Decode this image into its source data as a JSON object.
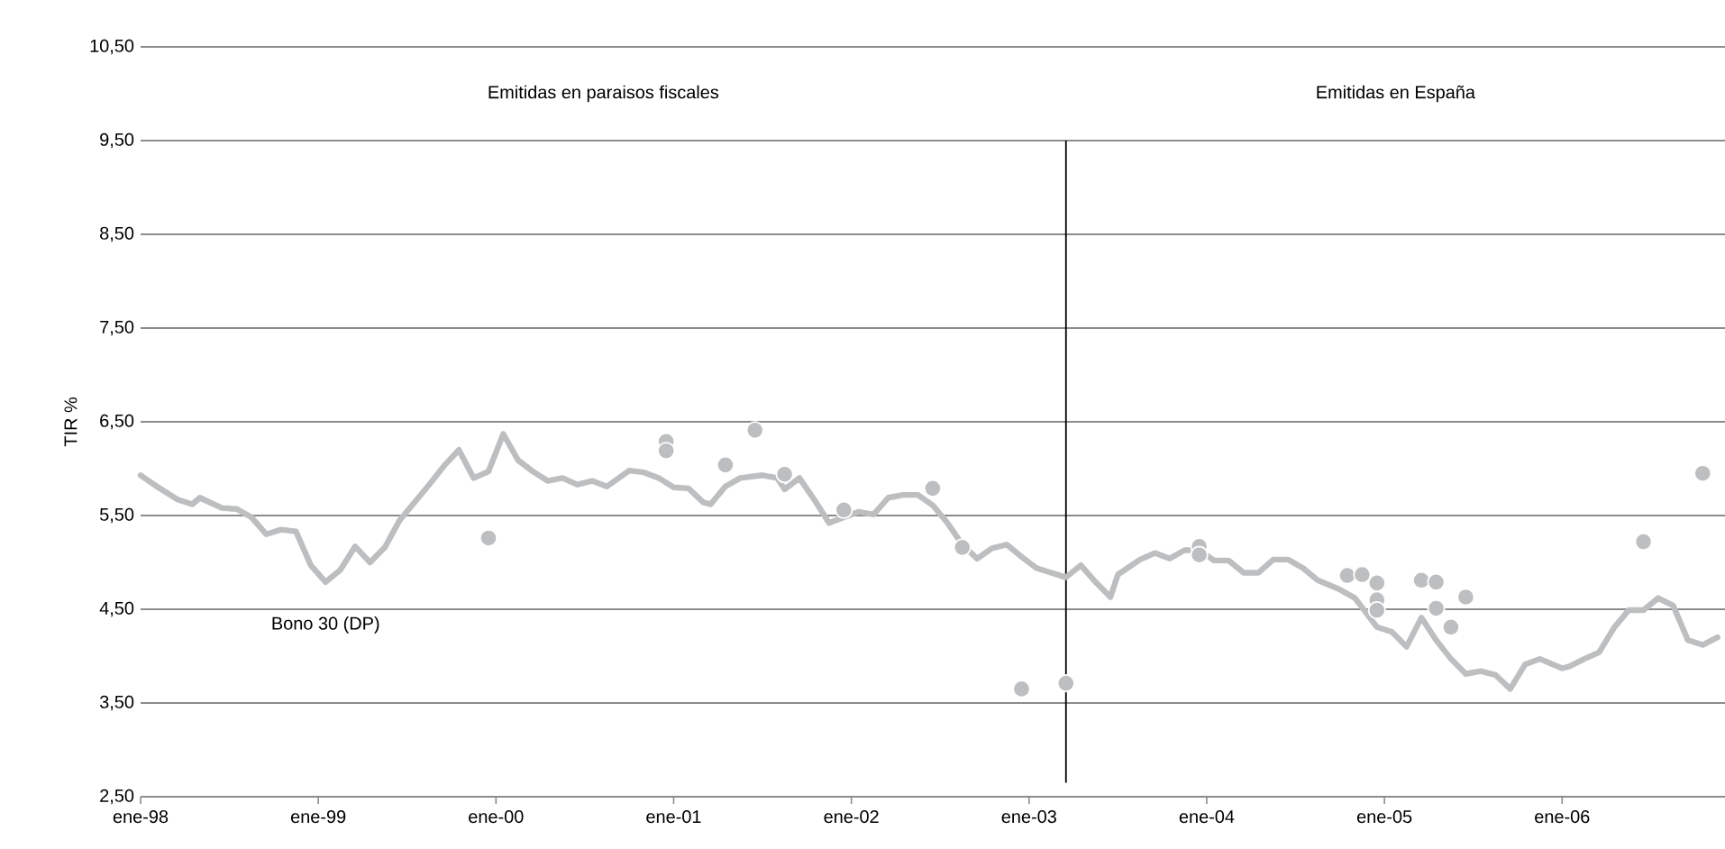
{
  "chart_data": {
    "type": "line",
    "ylabel": "TIR %",
    "annotations": [
      "Emitidas en paraisos fiscales",
      "Emitidas en España"
    ],
    "xlim": [
      "1998-01",
      "2006-12"
    ],
    "ylim": [
      2.5,
      10.5
    ],
    "xticks": [
      {
        "value": "1998-01",
        "label": "ene-98"
      },
      {
        "value": "1999-01",
        "label": "ene-99"
      },
      {
        "value": "2000-01",
        "label": "ene-00"
      },
      {
        "value": "2001-01",
        "label": "ene-01"
      },
      {
        "value": "2002-01",
        "label": "ene-02"
      },
      {
        "value": "2003-01",
        "label": "ene-03"
      },
      {
        "value": "2004-01",
        "label": "ene-04"
      },
      {
        "value": "2005-01",
        "label": "ene-05"
      },
      {
        "value": "2006-01",
        "label": "ene-06"
      }
    ],
    "yticks": [
      {
        "value": 2.5,
        "label": "2,50"
      },
      {
        "value": 3.5,
        "label": "3,50"
      },
      {
        "value": 4.5,
        "label": "4,50"
      },
      {
        "value": 5.5,
        "label": "5,50"
      },
      {
        "value": 6.5,
        "label": "6,50"
      },
      {
        "value": 7.5,
        "label": "7,50"
      },
      {
        "value": 8.5,
        "label": "8,50"
      },
      {
        "value": 9.5,
        "label": "9,50"
      },
      {
        "value": 10.5,
        "label": "10,50"
      }
    ],
    "grid": "y",
    "ref_lines": [
      {
        "axis": "x",
        "value": "2003-03-16",
        "color": "#000000"
      }
    ],
    "series": [
      {
        "name": "Bono 30 (DP)",
        "color": "#bcbec0",
        "x": [
          "1998-01-01",
          "1998-02-01",
          "1998-03-16",
          "1998-04-16",
          "1998-05-01",
          "1998-06-16",
          "1998-07-16",
          "1998-08-16",
          "1998-09-16",
          "1998-10-16",
          "1998-11-16",
          "1998-12-16",
          "1999-01-16",
          "1999-02-16",
          "1999-03-16",
          "1999-04-16",
          "1999-05-16",
          "1999-06-16",
          "1999-07-16",
          "1999-08-16",
          "1999-09-16",
          "1999-10-16",
          "1999-11-16",
          "1999-12-16",
          "2000-01-16",
          "2000-02-16",
          "2000-03-16",
          "2000-04-16",
          "2000-05-16",
          "2000-06-16",
          "2000-07-16",
          "2000-08-16",
          "2000-10-01",
          "2000-11-01",
          "2000-12-01",
          "2001-01-01",
          "2001-02-01",
          "2001-03-01",
          "2001-03-16",
          "2001-04-16",
          "2001-05-16",
          "2001-07-01",
          "2001-08-01",
          "2001-08-16",
          "2001-09-16",
          "2001-10-16",
          "2001-11-16",
          "2002-01-16",
          "2002-02-16",
          "2002-03-16",
          "2002-04-16",
          "2002-05-16",
          "2002-06-16",
          "2002-07-16",
          "2002-08-16",
          "2002-09-16",
          "2002-10-16",
          "2002-11-16",
          "2002-12-16",
          "2003-01-16",
          "2003-02-16",
          "2003-03-16",
          "2003-04-16",
          "2003-05-16",
          "2003-06-16",
          "2003-07-01",
          "2003-08-16",
          "2003-09-16",
          "2003-10-16",
          "2003-11-16",
          "2003-12-16",
          "2004-01-16",
          "2004-02-16",
          "2004-03-16",
          "2004-04-16",
          "2004-05-16",
          "2004-06-16",
          "2004-07-16",
          "2004-08-16",
          "2004-10-01",
          "2004-11-01",
          "2004-11-16",
          "2004-12-16",
          "2005-01-16",
          "2005-02-16",
          "2005-03-16",
          "2005-04-16",
          "2005-05-16",
          "2005-06-16",
          "2005-07-16",
          "2005-08-16",
          "2005-09-16",
          "2005-10-16",
          "2005-11-16",
          "2006-01-01",
          "2006-01-16",
          "2006-02-16",
          "2006-03-16",
          "2006-04-16",
          "2006-05-16",
          "2006-06-16",
          "2006-07-16",
          "2006-08-16",
          "2006-09-16",
          "2006-10-16",
          "2006-11-16"
        ],
        "values": [
          5.93,
          5.82,
          5.67,
          5.62,
          5.69,
          5.58,
          5.57,
          5.48,
          5.3,
          5.35,
          5.33,
          4.97,
          4.79,
          4.92,
          5.17,
          5.0,
          5.16,
          5.45,
          5.64,
          5.83,
          6.03,
          6.2,
          5.9,
          5.97,
          6.37,
          6.09,
          5.97,
          5.87,
          5.9,
          5.83,
          5.87,
          5.81,
          5.98,
          5.96,
          5.9,
          5.8,
          5.79,
          5.64,
          5.62,
          5.81,
          5.9,
          5.93,
          5.9,
          5.78,
          5.9,
          5.67,
          5.42,
          5.54,
          5.51,
          5.69,
          5.72,
          5.72,
          5.61,
          5.42,
          5.19,
          5.04,
          5.15,
          5.19,
          5.06,
          4.94,
          4.89,
          4.84,
          4.97,
          4.79,
          4.63,
          4.87,
          5.03,
          5.1,
          5.04,
          5.13,
          5.13,
          5.02,
          5.02,
          4.89,
          4.89,
          5.03,
          5.03,
          4.94,
          4.81,
          4.71,
          4.62,
          4.52,
          4.31,
          4.26,
          4.1,
          4.41,
          4.17,
          3.97,
          3.81,
          3.84,
          3.8,
          3.65,
          3.91,
          3.97,
          3.87,
          3.89,
          3.97,
          4.04,
          4.3,
          4.49,
          4.49,
          4.62,
          4.54,
          4.17,
          4.12,
          4.2
        ]
      },
      {
        "type": "scatter",
        "color": "#bcbec0",
        "x": [
          "1999-12-16",
          "2000-12-16",
          "2000-12-16",
          "2001-04-16",
          "2001-06-16",
          "2001-08-16",
          "2001-12-16",
          "2002-06-16",
          "2002-08-16",
          "2002-12-16",
          "2003-03-16",
          "2003-12-16",
          "2003-12-16",
          "2004-10-16",
          "2004-11-16",
          "2004-12-16",
          "2004-12-16",
          "2004-12-16",
          "2005-03-16",
          "2005-04-16",
          "2005-04-16",
          "2005-05-16",
          "2005-06-16",
          "2006-06-16",
          "2006-10-16"
        ],
        "values": [
          5.26,
          6.29,
          6.19,
          6.04,
          6.41,
          5.94,
          5.56,
          5.79,
          5.16,
          3.65,
          3.71,
          5.17,
          5.08,
          4.86,
          4.87,
          4.78,
          4.6,
          4.49,
          4.81,
          4.79,
          4.51,
          4.31,
          4.63,
          5.22,
          5.95
        ]
      }
    ]
  }
}
